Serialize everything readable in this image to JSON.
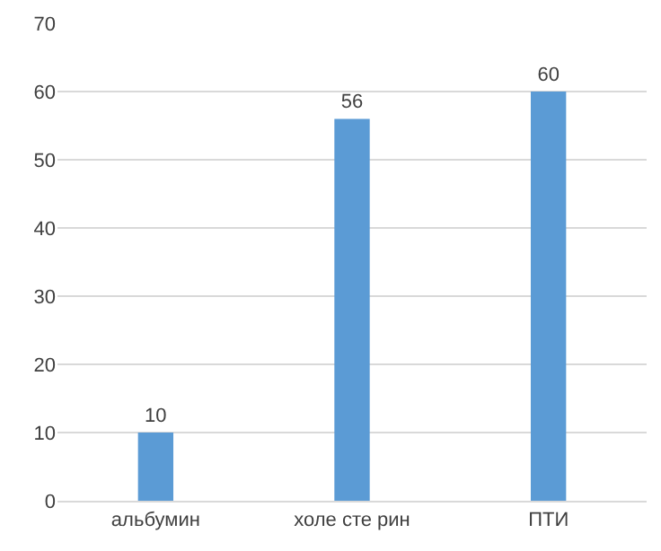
{
  "chart_data": {
    "type": "bar",
    "categories": [
      "альбумин",
      "холе сте рин",
      "ПТИ"
    ],
    "values": [
      10,
      56,
      60
    ],
    "color": "#5b9bd5",
    "ylim": [
      0,
      70
    ],
    "yticks": [
      0,
      10,
      20,
      30,
      40,
      50,
      60,
      70
    ],
    "grid": "y",
    "data_labels": true
  }
}
